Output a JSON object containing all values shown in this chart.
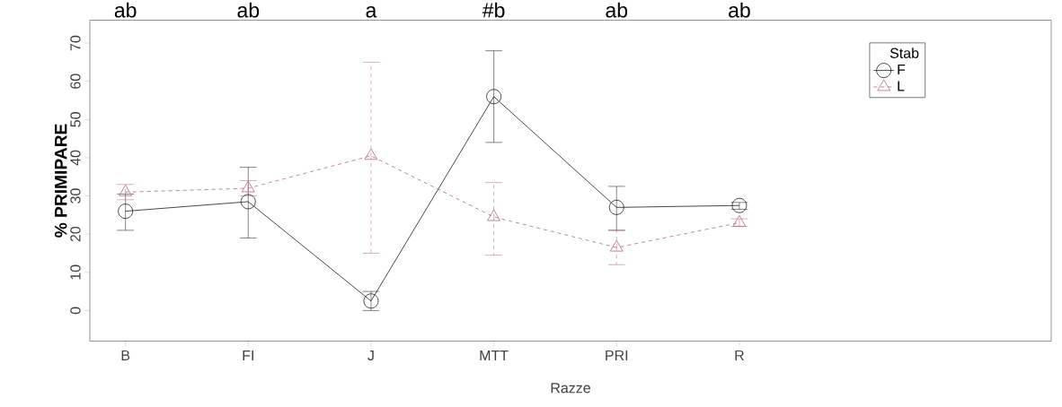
{
  "chart_data": {
    "type": "line",
    "xlabel": "Razze",
    "ylabel": "% PRIMIPARE",
    "legend_title": "Stab",
    "categories": [
      "B",
      "FI",
      "J",
      "MTT",
      "PRI",
      "R"
    ],
    "series": [
      {
        "name": "F",
        "color": "#1a1a1a",
        "marker": "circle",
        "line_style": "solid",
        "values": [
          26,
          28.5,
          2.5,
          56,
          27,
          27.5
        ],
        "errors": [
          [
            21,
            30.5
          ],
          [
            19,
            37.5
          ],
          [
            0,
            5
          ],
          [
            44,
            68
          ],
          [
            21,
            32.5
          ],
          [
            26.5,
            28.3
          ]
        ]
      },
      {
        "name": "L",
        "color": "#b5687a",
        "marker": "triangle",
        "line_style": "dashed",
        "values": [
          31,
          32,
          40.5,
          24.5,
          16.5,
          23
        ],
        "errors": [
          [
            29,
            33
          ],
          [
            30,
            34
          ],
          [
            15,
            65
          ],
          [
            14.5,
            33.5
          ],
          [
            12,
            21
          ],
          [
            22,
            24
          ]
        ]
      }
    ],
    "ylim": [
      -8,
      76
    ],
    "yticks": [
      0,
      10,
      20,
      30,
      40,
      50,
      60,
      70
    ],
    "grid": false,
    "legend": "top right",
    "annotations": [
      "ab",
      "ab",
      "a",
      "#b",
      "ab",
      "ab"
    ]
  }
}
